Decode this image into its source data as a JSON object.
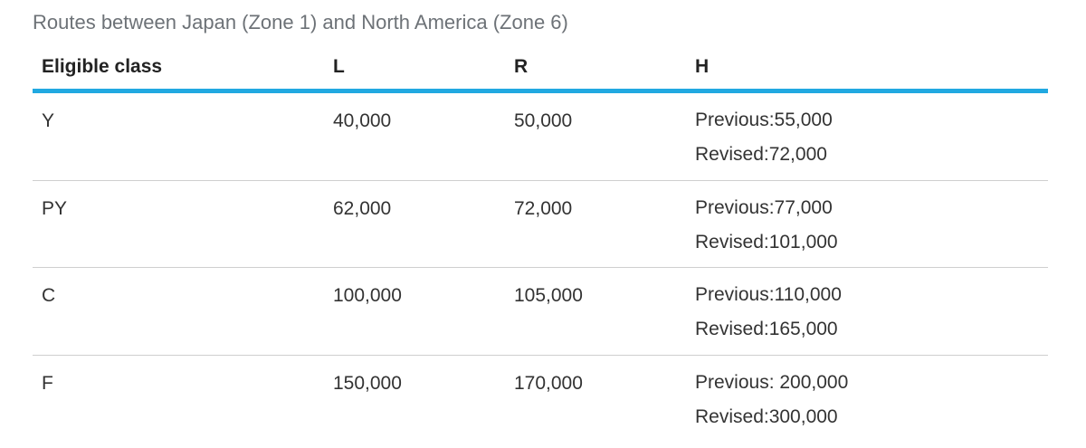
{
  "caption": "Routes between Japan (Zone 1) and North America (Zone 6)",
  "table": {
    "headers": [
      "Eligible class",
      "L",
      "R",
      "H"
    ],
    "rows": [
      {
        "class": "Y",
        "L": "40,000",
        "R": "50,000",
        "H_previous": "Previous:55,000",
        "H_revised": "Revised:72,000"
      },
      {
        "class": "PY",
        "L": "62,000",
        "R": "72,000",
        "H_previous": "Previous:77,000",
        "H_revised": "Revised:101,000"
      },
      {
        "class": "C",
        "L": "100,000",
        "R": "105,000",
        "H_previous": "Previous:110,000",
        "H_revised": "Revised:165,000"
      },
      {
        "class": "F",
        "L": "150,000",
        "R": "170,000",
        "H_previous": "Previous: 200,000",
        "H_revised": "Revised:300,000"
      }
    ]
  },
  "colors": {
    "header_rule": "#21a9e1",
    "row_divider": "#cfcfcf",
    "caption_text": "#6d7277"
  }
}
